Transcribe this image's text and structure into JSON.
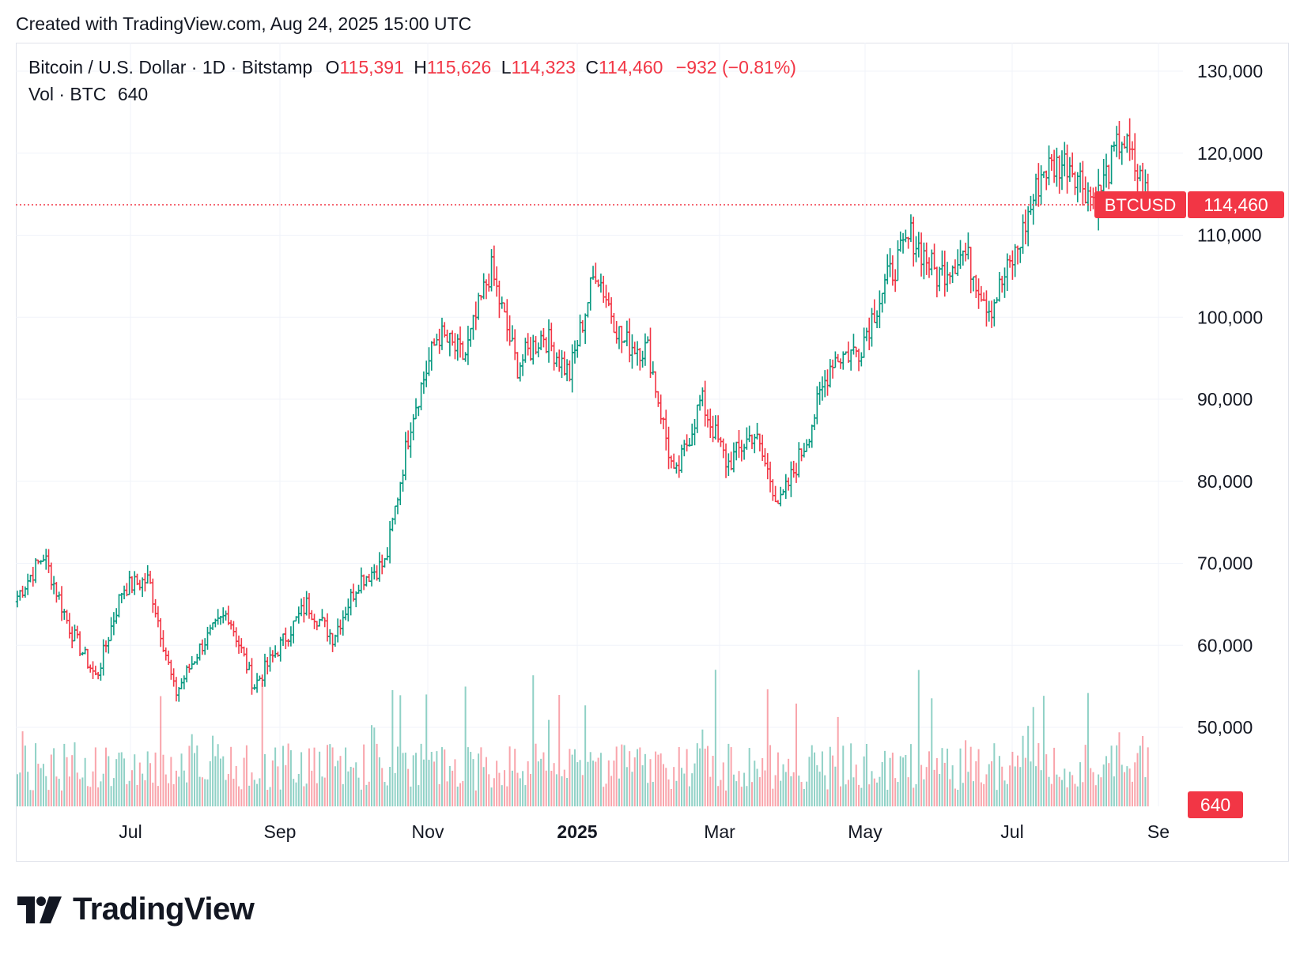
{
  "header": {
    "created_with": "Created with TradingView.com, Aug 24, 2025 15:00 UTC"
  },
  "legend": {
    "symbol": "Bitcoin / U.S. Dollar · 1D · Bitstamp",
    "open_label": "O",
    "open": "115,391",
    "high_label": "H",
    "high": "115,626",
    "low_label": "L",
    "low": "114,323",
    "close_label": "C",
    "close": "114,460",
    "change": "−932 (−0.81%)",
    "vol_label": "Vol · BTC",
    "vol_value": "640"
  },
  "price_tag": {
    "symbol": "BTCUSD",
    "value": "114,460"
  },
  "volume_tag": "640",
  "brand": {
    "name": "TradingView"
  },
  "colors": {
    "up": "#089981",
    "down": "#f23645",
    "grid": "#f0f3fa",
    "text": "#131722"
  },
  "chart_data": {
    "type": "ohlc",
    "interval": "1D",
    "y_axis_ticks": [
      "50,000",
      "60,000",
      "70,000",
      "80,000",
      "90,000",
      "100,000",
      "110,000",
      "120,000",
      "130,000"
    ],
    "ylim": [
      43000,
      134000
    ],
    "x_axis_ticks": [
      "Jul",
      "Sep",
      "Nov",
      "2025",
      "Mar",
      "May",
      "Jul",
      "Se"
    ],
    "last_price": 114460,
    "price_path": [
      {
        "month": "Jun 2024",
        "close": 66000
      },
      {
        "month": "Jun 2024",
        "close": 71000
      },
      {
        "month": "Jul 2024",
        "close": 62000
      },
      {
        "month": "Jul 2024",
        "close": 56000
      },
      {
        "month": "Jul 2024",
        "close": 67000
      },
      {
        "month": "Aug 2024",
        "close": 68000
      },
      {
        "month": "Aug 2024",
        "close": 54000
      },
      {
        "month": "Aug 2024",
        "close": 60000
      },
      {
        "month": "Sep 2024",
        "close": 64000
      },
      {
        "month": "Sep 2024",
        "close": 55000
      },
      {
        "month": "Sep 2024",
        "close": 60000
      },
      {
        "month": "Oct 2024",
        "close": 65000
      },
      {
        "month": "Oct 2024",
        "close": 61000
      },
      {
        "month": "Oct 2024",
        "close": 68000
      },
      {
        "month": "Nov 2024",
        "close": 70000
      },
      {
        "month": "Nov 2024",
        "close": 88000
      },
      {
        "month": "Nov 2024",
        "close": 98000
      },
      {
        "month": "Dec 2024",
        "close": 95000
      },
      {
        "month": "Dec 2024",
        "close": 106000
      },
      {
        "month": "Dec 2024",
        "close": 94000
      },
      {
        "month": "Jan 2025",
        "close": 98000
      },
      {
        "month": "Jan 2025",
        "close": 93000
      },
      {
        "month": "Jan 2025",
        "close": 106000
      },
      {
        "month": "Feb 2025",
        "close": 97000
      },
      {
        "month": "Feb 2025",
        "close": 96000
      },
      {
        "month": "Mar 2025",
        "close": 80000
      },
      {
        "month": "Mar 2025",
        "close": 90000
      },
      {
        "month": "Mar 2025",
        "close": 82000
      },
      {
        "month": "Apr 2025",
        "close": 86000
      },
      {
        "month": "Apr 2025",
        "close": 77000
      },
      {
        "month": "Apr 2025",
        "close": 85000
      },
      {
        "month": "May 2025",
        "close": 95000
      },
      {
        "month": "May 2025",
        "close": 96000
      },
      {
        "month": "May 2025",
        "close": 104000
      },
      {
        "month": "May 2025",
        "close": 110000
      },
      {
        "month": "Jun 2025",
        "close": 105000
      },
      {
        "month": "Jun 2025",
        "close": 108000
      },
      {
        "month": "Jun 2025",
        "close": 101000
      },
      {
        "month": "Jul 2025",
        "close": 108000
      },
      {
        "month": "Jul 2025",
        "close": 118000
      },
      {
        "month": "Jul 2025",
        "close": 119000
      },
      {
        "month": "Aug 2025",
        "close": 114000
      },
      {
        "month": "Aug 2025",
        "close": 122000
      },
      {
        "month": "Aug 2025",
        "close": 114460
      }
    ]
  }
}
